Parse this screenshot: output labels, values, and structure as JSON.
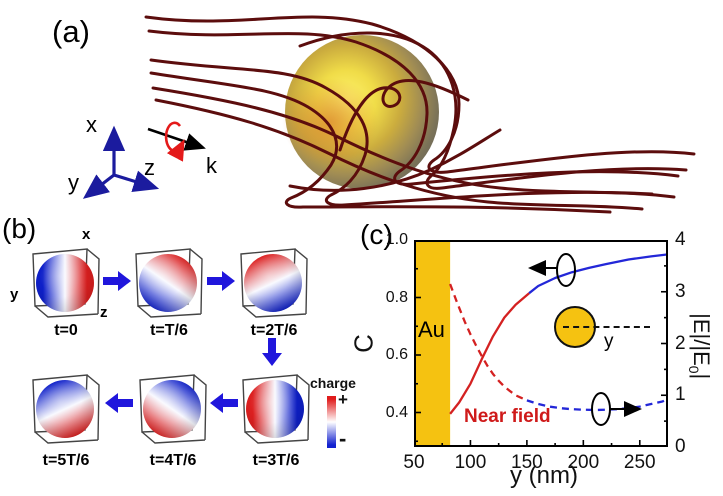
{
  "figure_labels": {
    "a": "(a)",
    "b": "(b)",
    "c": "(c)"
  },
  "panel_a": {
    "axes": {
      "x": "x",
      "y": "y",
      "z": "z"
    },
    "wave_vector_label": "k",
    "colors": {
      "field_line": "#5c0d0d",
      "axis": "#1b1b9e",
      "rotation_arrow": "#e41a1a",
      "sphere_gold": "#e8c93f"
    }
  },
  "panel_b": {
    "axes": {
      "x": "x",
      "y": "y",
      "z": "z"
    },
    "frames": [
      {
        "label": "t=0"
      },
      {
        "label": "t=T/6"
      },
      {
        "label": "t=2T/6"
      },
      {
        "label": "t=3T/6"
      },
      {
        "label": "t=4T/6"
      },
      {
        "label": "t=5T/6"
      }
    ],
    "colorbar": {
      "title": "charge",
      "positive": "+",
      "negative": "-",
      "top_color": "#e01c1c",
      "bottom_color": "#1322cf"
    }
  },
  "chart_data": {
    "type": "line",
    "title": "",
    "xlabel": "y (nm)",
    "ylabel_left": "C",
    "ylabel_right_parts": {
      "pre": "|E|/|E",
      "sub": "0",
      "post": "|"
    },
    "xlim": [
      50,
      275
    ],
    "ylim_left": [
      0.28,
      1.0
    ],
    "ylim_right": [
      0,
      4
    ],
    "grid": false,
    "xticks": {
      "values": [
        50,
        100,
        150,
        200,
        250
      ],
      "labels": [
        "50",
        "100",
        "150",
        "200",
        "250"
      ]
    },
    "yticks_left": {
      "values": [
        0.4,
        0.6,
        0.8,
        1.0
      ],
      "labels": [
        "0.4",
        "0.6",
        "0.8",
        "1.0"
      ]
    },
    "yticks_right": {
      "values": [
        0,
        1,
        2,
        3,
        4
      ],
      "labels": [
        "0",
        "1",
        "2",
        "3",
        "4"
      ]
    },
    "minor_xticks": [
      75,
      125,
      175,
      225
    ],
    "minor_yticks_left": [
      0.3,
      0.5,
      0.7,
      0.9
    ],
    "minor_yticks_right": [
      0.5,
      1.5,
      2.5,
      3.5
    ],
    "au_region": {
      "label": "Au",
      "x_start": 50,
      "x_end": 82,
      "color": "#F5C211"
    },
    "annotations": {
      "near_field": "Near field",
      "inset_distance_label": "y",
      "left_axis_indicator": "ellipse with left arrow marks solid C curve (left axis)",
      "right_axis_indicator": "ellipse with right arrow marks dashed |E|/|E0| curve (right axis)"
    },
    "series": [
      {
        "name": "C near-field segment",
        "axis": "left",
        "style": "solid",
        "color": "#d42121",
        "x": [
          82,
          90,
          100,
          110,
          120,
          130,
          140,
          152
        ],
        "y": [
          0.395,
          0.435,
          0.5,
          0.585,
          0.665,
          0.73,
          0.775,
          0.815
        ]
      },
      {
        "name": "C far segment",
        "axis": "left",
        "style": "solid",
        "color": "#2327d8",
        "x": [
          152,
          160,
          175,
          190,
          205,
          220,
          240,
          260,
          275
        ],
        "y": [
          0.815,
          0.84,
          0.868,
          0.888,
          0.903,
          0.916,
          0.932,
          0.943,
          0.95
        ]
      },
      {
        "name": "|E|/|E0| near-field segment",
        "axis": "right",
        "style": "dashed",
        "color": "#d42121",
        "x": [
          82,
          88,
          95,
          100,
          105,
          110,
          115,
          120,
          125,
          130,
          135,
          140,
          145,
          150
        ],
        "y": [
          3.15,
          2.8,
          2.42,
          2.18,
          1.96,
          1.76,
          1.57,
          1.41,
          1.28,
          1.17,
          1.08,
          1.0,
          0.95,
          0.9
        ]
      },
      {
        "name": "|E|/|E0| far segment",
        "axis": "right",
        "style": "dashed",
        "color": "#2327d8",
        "x": [
          150,
          160,
          170,
          180,
          190,
          200,
          210,
          220,
          230,
          240,
          250,
          260,
          270,
          275
        ],
        "y": [
          0.9,
          0.83,
          0.78,
          0.75,
          0.73,
          0.72,
          0.715,
          0.72,
          0.73,
          0.75,
          0.78,
          0.83,
          0.88,
          0.93
        ]
      }
    ]
  }
}
